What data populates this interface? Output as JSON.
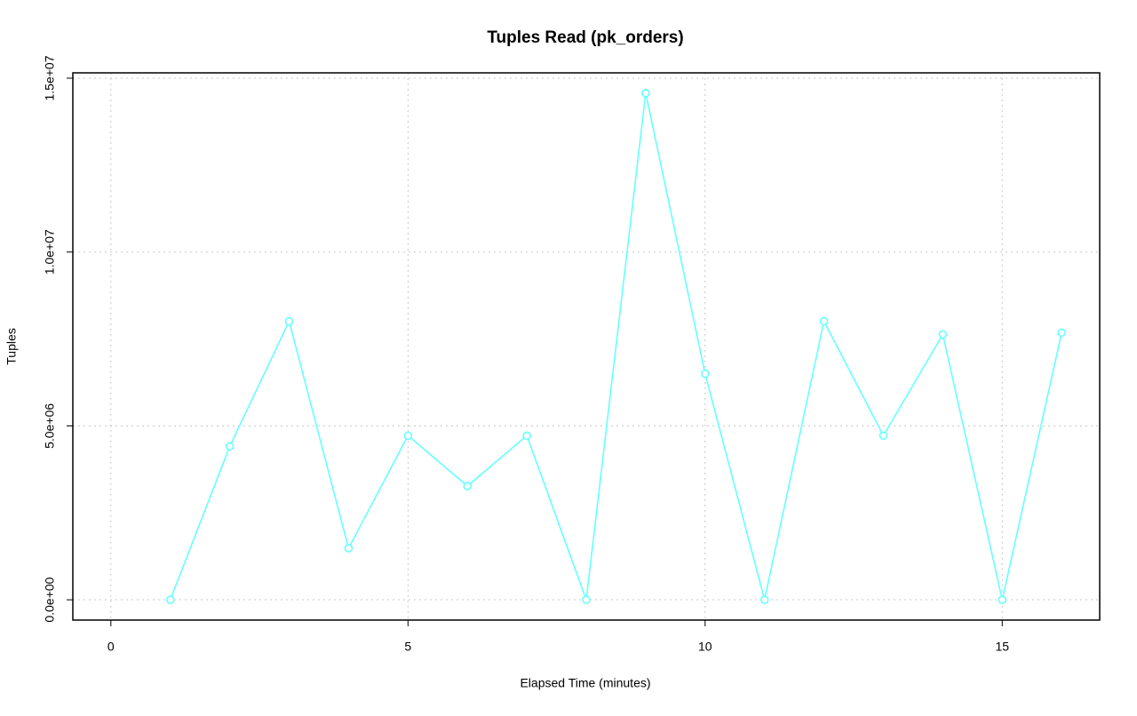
{
  "chart_data": {
    "type": "line",
    "title": "Tuples Read (pk_orders)",
    "x_label": "Elapsed Time (minutes)",
    "y_label": "Tuples",
    "x": [
      1,
      2,
      3,
      4,
      5,
      6,
      7,
      8,
      9,
      10,
      11,
      12,
      13,
      14,
      15,
      16
    ],
    "series": [
      {
        "name": "pk_orders",
        "color": "#66ffff",
        "values": [
          0,
          4410000,
          8010000,
          1480000,
          4720000,
          3270000,
          4720000,
          0,
          14570000,
          6500000,
          0,
          8010000,
          4720000,
          7630000,
          0,
          7680000
        ]
      }
    ],
    "xlim": [
      -0.64,
      16.64
    ],
    "ylim": [
      -583000,
      15153000
    ],
    "xticks": [
      0,
      5,
      10,
      15
    ],
    "yticks": [
      {
        "value": 0,
        "label": "0.0e+00"
      },
      {
        "value": 5000000,
        "label": "5.0e+06"
      },
      {
        "value": 10000000,
        "label": "1.0e+07"
      },
      {
        "value": 15000000,
        "label": "1.5e+07"
      }
    ],
    "grid": true
  }
}
